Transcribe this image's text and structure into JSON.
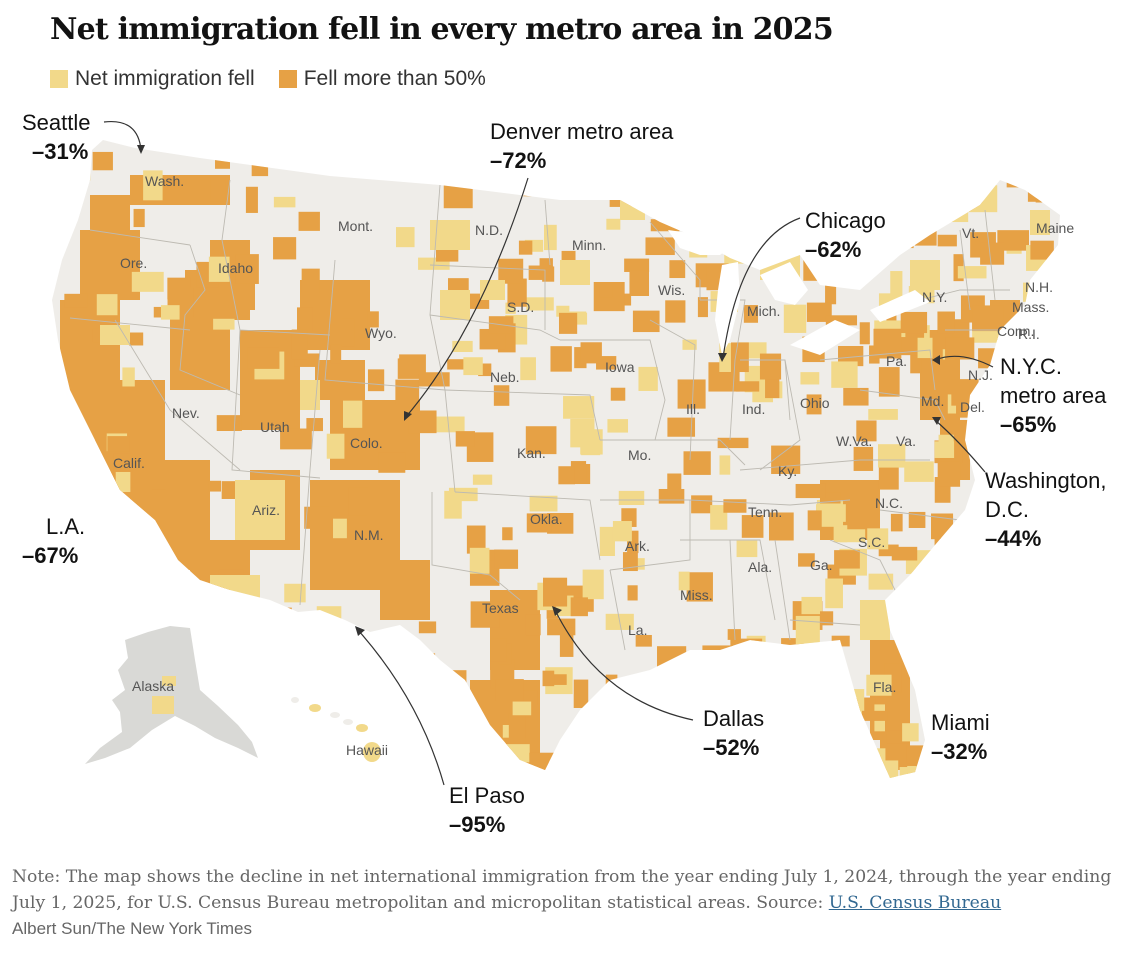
{
  "title": "Net immigration fell in every metro area in 2025",
  "legend": [
    {
      "label": "Net immigration fell",
      "color": "#f2d98a"
    },
    {
      "label": "Fell more than 50%",
      "color": "#e6a145"
    }
  ],
  "colors": {
    "land": "#efede9",
    "alaska": "#d9d9d6",
    "fell": "#f2d98a",
    "fell_more": "#e6a145",
    "border": "#ffffff"
  },
  "state_labels": [
    "Wash.",
    "Mont.",
    "N.D.",
    "Minn.",
    "Ore.",
    "Idaho",
    "S.D.",
    "Wis.",
    "Wyo.",
    "Mich.",
    "Vt.",
    "Maine",
    "N.H.",
    "N.Y.",
    "Mass.",
    "Conn.",
    "R.I.",
    "Pa.",
    "N.J.",
    "Neb.",
    "Iowa",
    "Ill.",
    "Ind.",
    "Ohio",
    "Md.",
    "Del.",
    "Nev.",
    "Utah",
    "Colo.",
    "Kan.",
    "Mo.",
    "W.Va.",
    "Va.",
    "Ky.",
    "Calif.",
    "Ariz.",
    "N.M.",
    "Okla.",
    "Ark.",
    "Tenn.",
    "N.C.",
    "S.C.",
    "Ala.",
    "Ga.",
    "Miss.",
    "Texas",
    "La.",
    "Fla.",
    "Alaska",
    "Hawaii"
  ],
  "callouts": [
    {
      "name": "Seattle",
      "value": "–31%"
    },
    {
      "name": "Denver metro area",
      "value": "–72%"
    },
    {
      "name": "Chicago",
      "value": "–62%"
    },
    {
      "name": "N.Y.C.",
      "name2": "metro area",
      "value": "–65%"
    },
    {
      "name": "Washington,",
      "name2": "D.C.",
      "value": "–44%"
    },
    {
      "name": "L.A.",
      "value": "–67%"
    },
    {
      "name": "El Paso",
      "value": "–95%"
    },
    {
      "name": "Dallas",
      "value": "–52%"
    },
    {
      "name": "Miami",
      "value": "–32%"
    }
  ],
  "note": {
    "text": "Note: The map shows the decline in net international immigration from the year ending July 1, 2024, through the year ending July 1, 2025, for U.S. Census Bureau metropolitan and micropolitan statistical areas. Source: ",
    "link": "U.S. Census Bureau"
  },
  "credit": "Albert Sun/The New York Times"
}
